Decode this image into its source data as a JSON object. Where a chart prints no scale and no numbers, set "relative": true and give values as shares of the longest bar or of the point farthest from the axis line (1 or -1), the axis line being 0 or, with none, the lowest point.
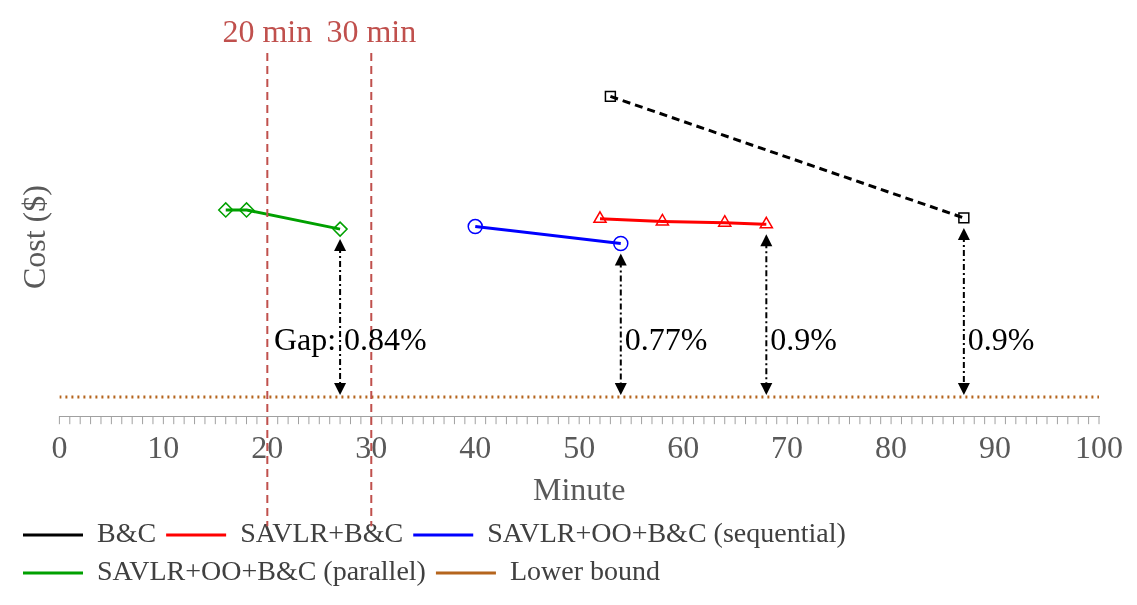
{
  "chart_data": {
    "type": "line",
    "relative": true,
    "xlabel": "Minute",
    "ylabel": "Cost ($)",
    "xlim": [
      0,
      100
    ],
    "xticks": [
      0,
      10,
      20,
      30,
      40,
      50,
      60,
      70,
      80,
      90,
      100
    ],
    "grid": false,
    "legend": "bottom",
    "series": [
      {
        "name": "B&C",
        "color": "#000000",
        "marker": "square",
        "line_style": "dashed",
        "x": [
          53,
          87
        ],
        "values": [
          1,
          0.62
        ]
      },
      {
        "name": "SAVLR+B&C",
        "color": "#ff0000",
        "marker": "triangle",
        "line_style": "solid",
        "x": [
          52,
          58,
          64,
          68
        ],
        "values": [
          0.617,
          0.609,
          0.605,
          0.6
        ]
      },
      {
        "name": "SAVLR+OO+B&C (sequential)",
        "color": "#0000ff",
        "marker": "circle",
        "line_style": "solid",
        "x": [
          40,
          54
        ],
        "values": [
          0.593,
          0.54
        ]
      },
      {
        "name": "SAVLR+OO+B&C (parallel)",
        "color": "#00a000",
        "marker": "diamond",
        "line_style": "solid",
        "x": [
          16,
          18,
          27
        ],
        "values": [
          0.645,
          0.645,
          0.585
        ]
      },
      {
        "name": "Lower bound",
        "color": "#b5651d",
        "marker": "none",
        "line_style": "dotted",
        "x": [
          0,
          100
        ],
        "values": [
          0.06,
          0.06
        ]
      }
    ],
    "ref_lines": [
      {
        "axis": "x",
        "value": 20,
        "label": "20 min",
        "color": "#c0504d",
        "line_style": "dashed"
      },
      {
        "axis": "x",
        "value": 30,
        "label": "30 min",
        "color": "#c0504d",
        "line_style": "dashed"
      }
    ],
    "annotations": [
      "Gap:",
      "0.84%",
      "0.77%",
      "0.9%",
      "0.9%"
    ]
  }
}
